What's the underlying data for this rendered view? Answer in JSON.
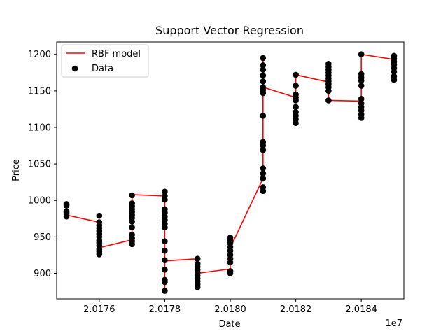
{
  "chart_data": {
    "type": "scatter",
    "title": "Support Vector Regression",
    "xlabel": "Date",
    "ylabel": "Price",
    "x_offset_label": "1e7",
    "xlim": [
      20174.7,
      20185.3
    ],
    "ylim": [
      865,
      1217
    ],
    "x_ticks": [
      20176,
      20178,
      20180,
      20182,
      20184
    ],
    "x_tick_labels": [
      "2.0176",
      "2.0178",
      "2.0180",
      "2.0182",
      "2.0184"
    ],
    "y_ticks": [
      900,
      950,
      1000,
      1050,
      1100,
      1150,
      1200
    ],
    "y_tick_labels": [
      "900",
      "950",
      "1000",
      "1050",
      "1100",
      "1150",
      "1200"
    ],
    "grid": false,
    "legend": {
      "position": "top-left",
      "entries": [
        {
          "label": "RBF model",
          "kind": "line",
          "color": "#ff0000"
        },
        {
          "label": "Data",
          "kind": "marker",
          "color": "#000000"
        }
      ]
    },
    "series": [
      {
        "name": "Data",
        "kind": "scatter",
        "color": "#000000",
        "groups": [
          {
            "x": 20175,
            "y": [
              978,
              981,
              983,
              985,
              993,
              995
            ]
          },
          {
            "x": 20176,
            "y": [
              926,
              930,
              933,
              938,
              942,
              945,
              950,
              954,
              958,
              962,
              966,
              970,
              979
            ]
          },
          {
            "x": 20177,
            "y": [
              940,
              944,
              948,
              953,
              963,
              971,
              976,
              980,
              984,
              988,
              992,
              996,
              1007
            ]
          },
          {
            "x": 20178,
            "y": [
              876,
              888,
              891,
              905,
              918,
              931,
              944,
              963,
              968,
              973,
              978,
              983,
              988,
              1001,
              1006,
              1012
            ]
          },
          {
            "x": 20179,
            "y": [
              881,
              885,
              889,
              893,
              897,
              901,
              905,
              909,
              913,
              920
            ]
          },
          {
            "x": 20180,
            "y": [
              900,
              903,
              915,
              920,
              925,
              931,
              936,
              941,
              945,
              949
            ]
          },
          {
            "x": 20181,
            "y": [
              1013,
              1018,
              1030,
              1037,
              1044,
              1069,
              1075,
              1080,
              1116,
              1147,
              1151,
              1155,
              1163,
              1171,
              1179,
              1185,
              1195
            ]
          },
          {
            "x": 20182,
            "y": [
              1106,
              1111,
              1116,
              1121,
              1128,
              1137,
              1141,
              1145,
              1157,
              1172
            ]
          },
          {
            "x": 20183,
            "y": [
              1137,
              1150,
              1155,
              1159,
              1163,
              1167,
              1171,
              1175,
              1179,
              1183,
              1187
            ]
          },
          {
            "x": 20184,
            "y": [
              1113,
              1118,
              1123,
              1128,
              1133,
              1139,
              1157,
              1164,
              1168,
              1173,
              1200
            ]
          },
          {
            "x": 20185,
            "y": [
              1165,
              1170,
              1176,
              1181,
              1186,
              1190,
              1194,
              1198
            ]
          }
        ]
      },
      {
        "name": "RBF model",
        "kind": "line",
        "color": "#ff0000",
        "points": [
          [
            20175,
            993
          ],
          [
            20175,
            980
          ],
          [
            20176,
            970
          ],
          [
            20176,
            935
          ],
          [
            20177,
            946
          ],
          [
            20177,
            1008
          ],
          [
            20178,
            1006
          ],
          [
            20178,
            880
          ],
          [
            20178,
            917
          ],
          [
            20179,
            920
          ],
          [
            20179,
            890
          ],
          [
            20179,
            900
          ],
          [
            20180,
            906
          ],
          [
            20180,
            935
          ],
          [
            20181,
            1030
          ],
          [
            20181,
            1195
          ],
          [
            20181,
            1155
          ],
          [
            20182,
            1141
          ],
          [
            20182,
            1172
          ],
          [
            20183,
            1162
          ],
          [
            20183,
            1137
          ],
          [
            20184,
            1136
          ],
          [
            20184,
            1200
          ],
          [
            20185,
            1193
          ],
          [
            20185,
            1175
          ]
        ]
      }
    ]
  }
}
